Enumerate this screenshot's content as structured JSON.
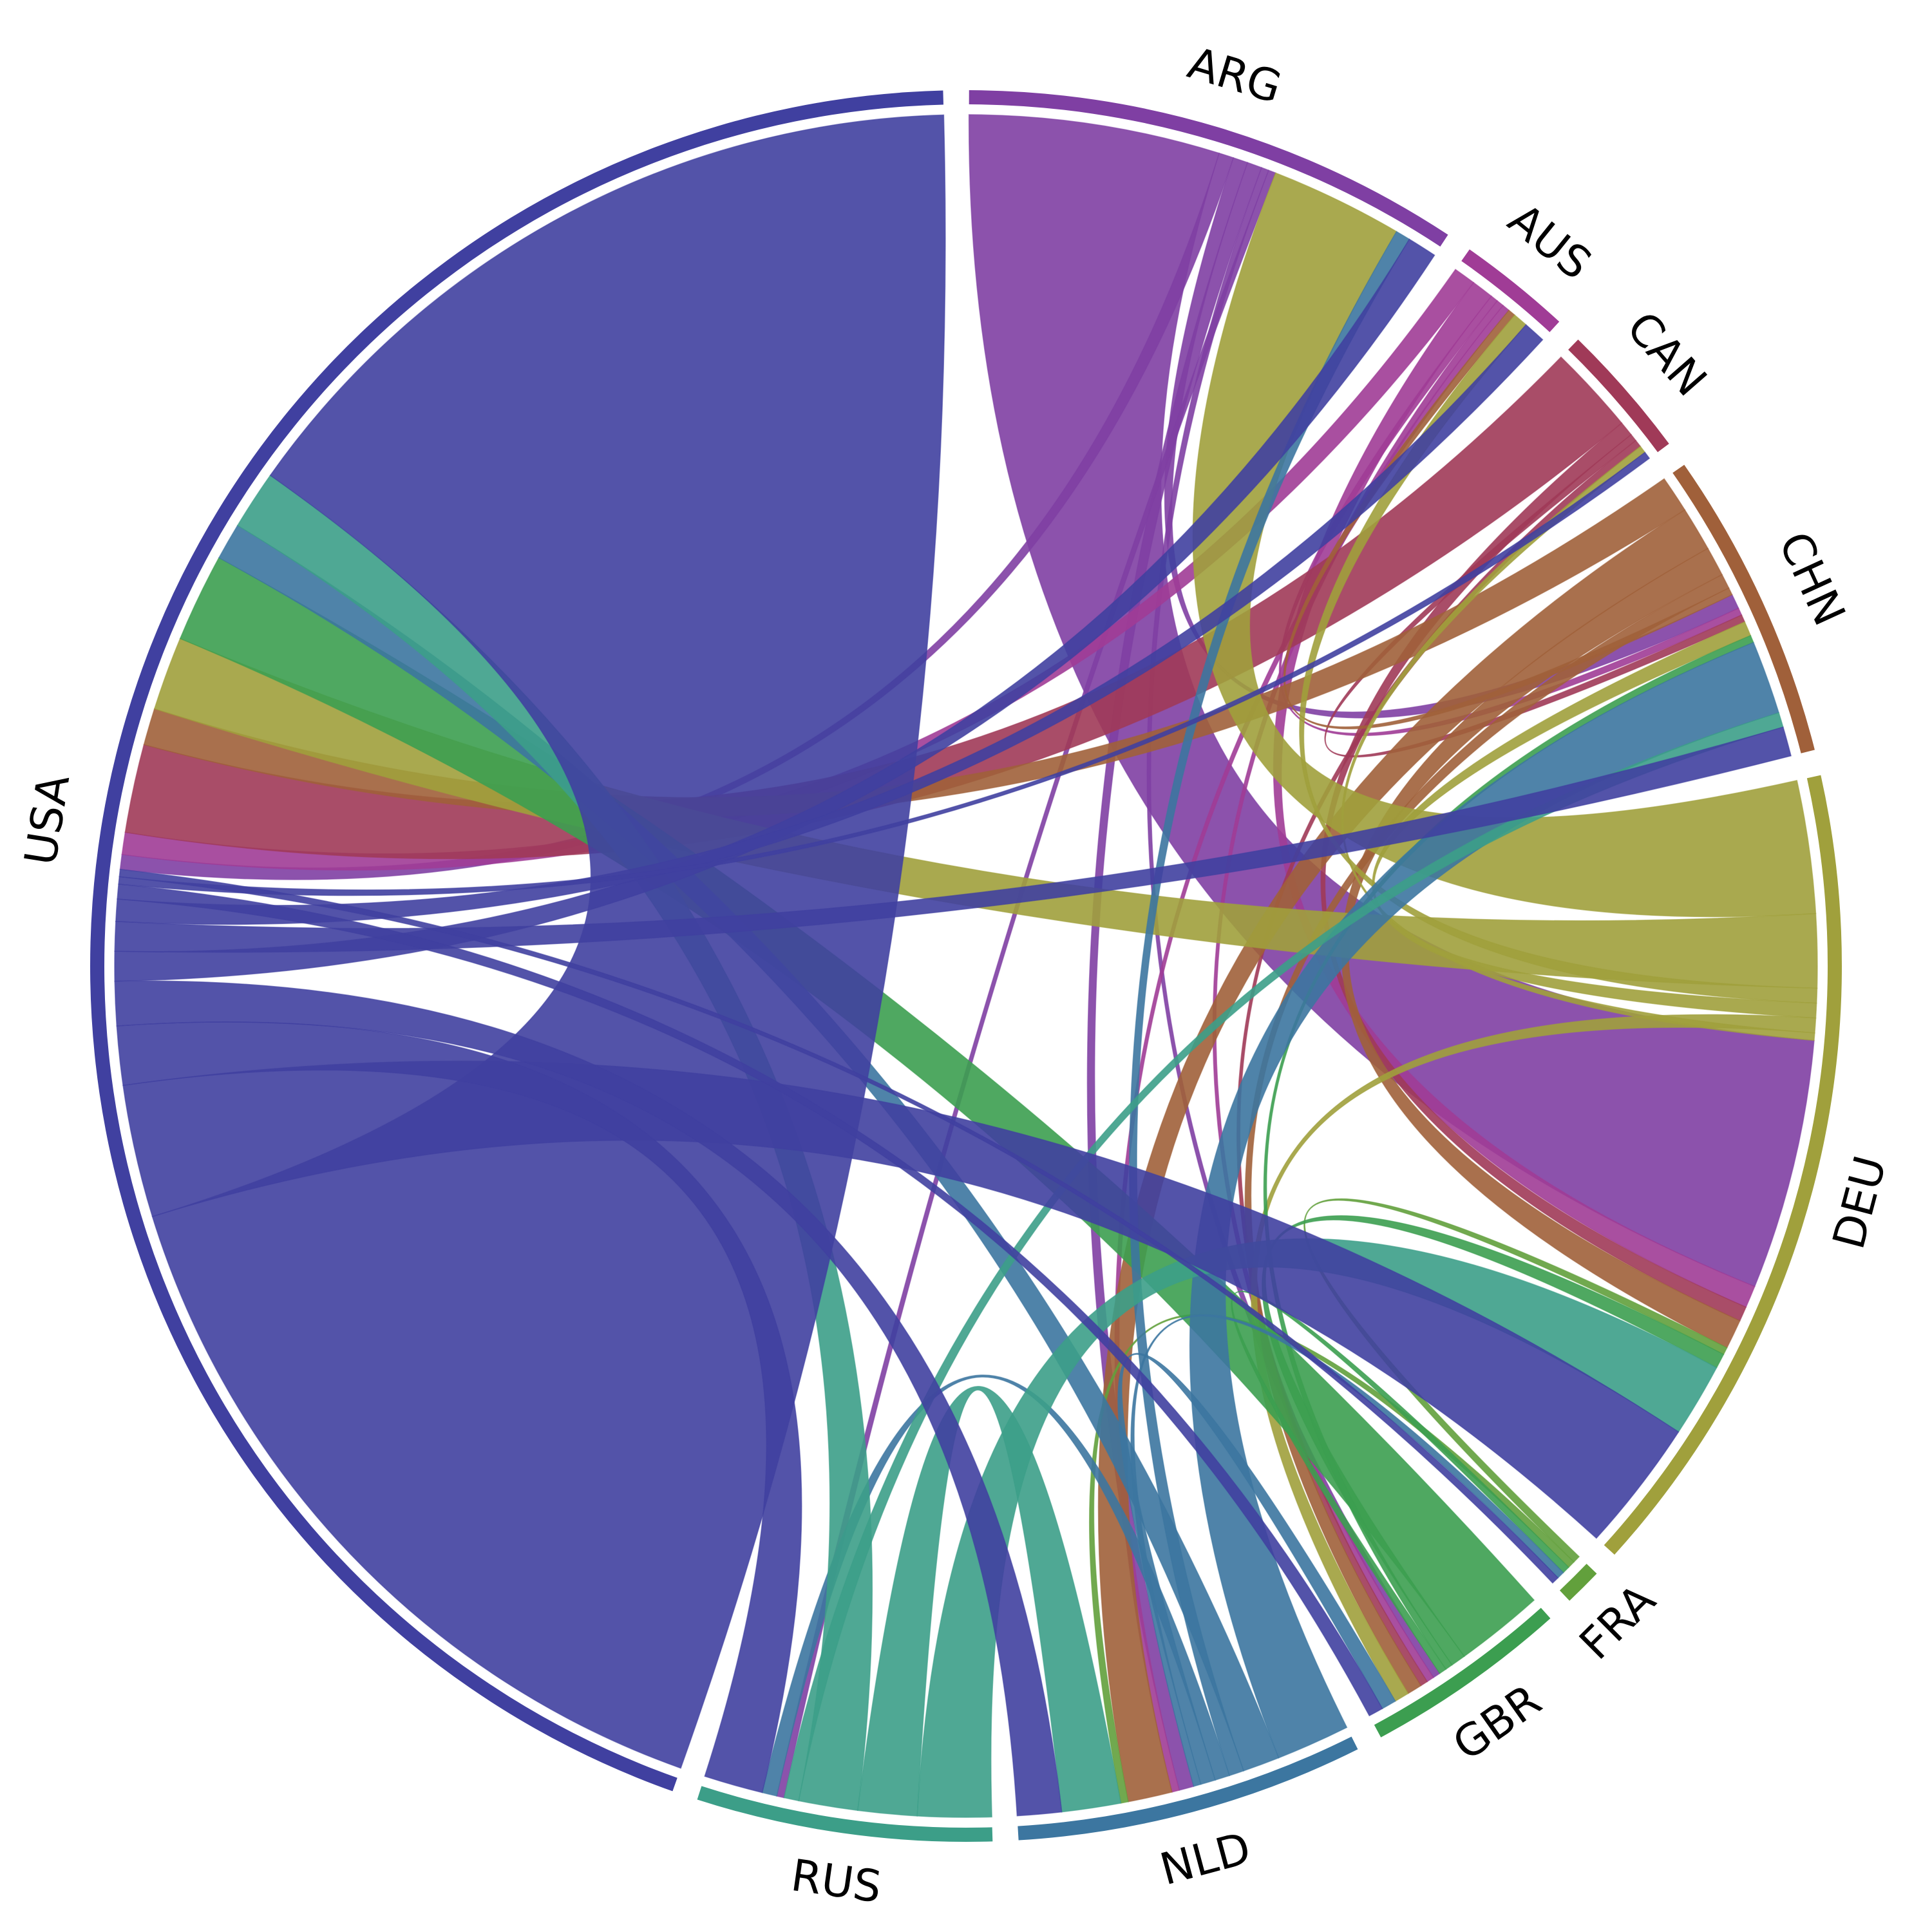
{
  "chart_data": {
    "type": "chord",
    "nodes": [
      {
        "name": "ARG",
        "color": "#7f3fa3"
      },
      {
        "name": "AUS",
        "color": "#a03c96"
      },
      {
        "name": "CAN",
        "color": "#a03a58"
      },
      {
        "name": "CHN",
        "color": "#a0603a"
      },
      {
        "name": "DEU",
        "color": "#a0a03c"
      },
      {
        "name": "FRA",
        "color": "#62a03c"
      },
      {
        "name": "GBR",
        "color": "#3c9e50"
      },
      {
        "name": "NLD",
        "color": "#3c76a0"
      },
      {
        "name": "RUS",
        "color": "#3c9e88"
      },
      {
        "name": "USA",
        "color": "#4040a0"
      }
    ],
    "links": [
      {
        "source": "ARG",
        "target": "DEU",
        "value": 17
      },
      {
        "source": "ARG",
        "target": "USA",
        "value": 1
      },
      {
        "source": "ARG",
        "target": "CHN",
        "value": 1
      },
      {
        "source": "ARG",
        "target": "NLD",
        "value": 1
      },
      {
        "source": "ARG",
        "target": "GBR",
        "value": 0.5
      },
      {
        "source": "ARG",
        "target": "RUS",
        "value": 0.5
      },
      {
        "source": "AUS",
        "target": "USA",
        "value": 1.5
      },
      {
        "source": "AUS",
        "target": "DEU",
        "value": 1.5
      },
      {
        "source": "AUS",
        "target": "CHN",
        "value": 0.5
      },
      {
        "source": "AUS",
        "target": "GBR",
        "value": 0.5
      },
      {
        "source": "AUS",
        "target": "NLD",
        "value": 0.5
      },
      {
        "source": "CAN",
        "target": "USA",
        "value": 6
      },
      {
        "source": "CAN",
        "target": "DEU",
        "value": 1
      },
      {
        "source": "CAN",
        "target": "CHN",
        "value": 0.5
      },
      {
        "source": "CAN",
        "target": "GBR",
        "value": 0.5
      },
      {
        "source": "CHN",
        "target": "USA",
        "value": 2.5
      },
      {
        "source": "CHN",
        "target": "NLD",
        "value": 3
      },
      {
        "source": "CHN",
        "target": "DEU",
        "value": 2
      },
      {
        "source": "CHN",
        "target": "GBR",
        "value": 1
      },
      {
        "source": "CHN",
        "target": "AUS",
        "value": 0.5
      },
      {
        "source": "DEU",
        "target": "ARG",
        "value": 9
      },
      {
        "source": "DEU",
        "target": "USA",
        "value": 5
      },
      {
        "source": "DEU",
        "target": "AUS",
        "value": 1
      },
      {
        "source": "DEU",
        "target": "CHN",
        "value": 1
      },
      {
        "source": "DEU",
        "target": "GBR",
        "value": 1
      },
      {
        "source": "DEU",
        "target": "CAN",
        "value": 0.5
      },
      {
        "source": "FRA",
        "target": "DEU",
        "value": 0.5
      },
      {
        "source": "FRA",
        "target": "NLD",
        "value": 0.5
      },
      {
        "source": "GBR",
        "target": "USA",
        "value": 6
      },
      {
        "source": "GBR",
        "target": "DEU",
        "value": 1
      },
      {
        "source": "GBR",
        "target": "CHN",
        "value": 0.5
      },
      {
        "source": "GBR",
        "target": "FRA",
        "value": 0.5
      },
      {
        "source": "NLD",
        "target": "CHN",
        "value": 5
      },
      {
        "source": "NLD",
        "target": "USA",
        "value": 2.5
      },
      {
        "source": "NLD",
        "target": "ARG",
        "value": 1
      },
      {
        "source": "NLD",
        "target": "RUS",
        "value": 1
      },
      {
        "source": "NLD",
        "target": "GBR",
        "value": 1
      },
      {
        "source": "NLD",
        "target": "FRA",
        "value": 0.5
      },
      {
        "source": "RUS",
        "target": "DEU",
        "value": 5
      },
      {
        "source": "RUS",
        "target": "NLD",
        "value": 4
      },
      {
        "source": "RUS",
        "target": "USA",
        "value": 4
      },
      {
        "source": "RUS",
        "target": "CHN",
        "value": 1
      },
      {
        "source": "USA",
        "target": "USA",
        "value": 53
      },
      {
        "source": "USA",
        "target": "DEU",
        "value": 9
      },
      {
        "source": "USA",
        "target": "RUS",
        "value": 4
      },
      {
        "source": "USA",
        "target": "NLD",
        "value": 3
      },
      {
        "source": "USA",
        "target": "ARG",
        "value": 2
      },
      {
        "source": "USA",
        "target": "CHN",
        "value": 2
      },
      {
        "source": "USA",
        "target": "AUS",
        "value": 1.5
      },
      {
        "source": "USA",
        "target": "GBR",
        "value": 1
      },
      {
        "source": "USA",
        "target": "CAN",
        "value": 0.5
      },
      {
        "source": "USA",
        "target": "FRA",
        "value": 0.5
      }
    ]
  }
}
